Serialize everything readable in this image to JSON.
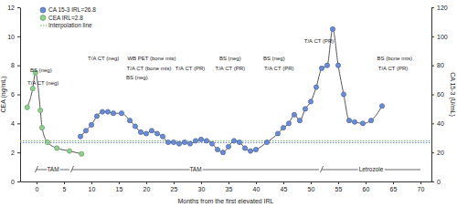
{
  "chart_data": {
    "type": "line",
    "x_label": "Months from the first elevated IRL",
    "y_label": "CEA (ng/mL)",
    "y2_label": "CA 15-3 (U/mL)",
    "xlim": [
      -3,
      72
    ],
    "xticks": [
      0,
      5,
      10,
      15,
      20,
      25,
      30,
      35,
      40,
      45,
      50,
      55,
      60,
      65,
      70
    ],
    "ylim": [
      0,
      12
    ],
    "yticks": [
      0,
      2,
      4,
      6,
      8,
      10,
      12
    ],
    "y2lim": [
      0,
      120
    ],
    "y2ticks": [
      0,
      20,
      40,
      60,
      80,
      100,
      120
    ],
    "legend": "top-left",
    "series": [
      {
        "name": "CA 15-3 IRL=26.8",
        "axis": "y2",
        "color": "#6a8bd6",
        "marker": "circle",
        "line_style": "solid",
        "irl": 26.8,
        "x": [
          8,
          9,
          10,
          11,
          12,
          13,
          14,
          15.5,
          17,
          18,
          19,
          20,
          21,
          22,
          23,
          24,
          25,
          26,
          27,
          28,
          29,
          30,
          31,
          32,
          33,
          34,
          35,
          36,
          37,
          38,
          39,
          40,
          42,
          44,
          45,
          46,
          47,
          48,
          49,
          50,
          51,
          52,
          53,
          54,
          55,
          56,
          57,
          58,
          59.5,
          61,
          63
        ],
        "values": [
          31,
          35,
          39,
          45,
          48,
          48,
          47,
          47,
          42,
          38,
          34,
          33,
          35,
          33,
          31,
          27,
          27,
          26,
          27,
          26,
          28,
          29,
          28,
          26,
          22,
          20,
          24,
          28,
          27,
          23,
          21,
          22,
          27,
          33,
          37,
          40,
          46,
          42,
          50,
          55,
          65,
          78,
          80,
          105,
          80,
          60,
          42,
          41,
          40,
          42,
          52
        ]
      },
      {
        "name": "CEA IRL=2.8",
        "color": "#8fd18f",
        "marker": "circle",
        "line_style": "solid",
        "irl": 2.8,
        "x": [
          -1.7,
          -0.7,
          -0.2,
          0.7,
          1,
          2,
          3.7,
          6,
          8.2
        ],
        "values": [
          5.1,
          6.4,
          7.5,
          4.9,
          3.7,
          2.7,
          2.3,
          2.1,
          1.9
        ]
      }
    ],
    "interpolation_line": {
      "label": "Interpolation line",
      "color": "#5aa05a",
      "line_style": "dotted"
    },
    "annotations": [
      {
        "text": "BS (neg)",
        "x": 0.8,
        "y": 7.7
      },
      {
        "text": "T/A CT (neg)",
        "x": 1.2,
        "y": 6.8
      },
      {
        "text": "T/A CT (neg)",
        "x": 12.2,
        "y": 8.5
      },
      {
        "text": "WB PET (bone mts)",
        "x": 21,
        "y": 8.5
      },
      {
        "text": "T/A CT (bone mts)",
        "x": 20.5,
        "y": 7.8
      },
      {
        "text": "BS (neg)",
        "x": 18.3,
        "y": 7.2
      },
      {
        "text": "T/A CT (PR)",
        "x": 28,
        "y": 7.8
      },
      {
        "text": "BS (neg)",
        "x": 35.3,
        "y": 8.5
      },
      {
        "text": "T/A CT (PR)",
        "x": 35.3,
        "y": 7.8
      },
      {
        "text": "BS (neg)",
        "x": 43.3,
        "y": 8.5
      },
      {
        "text": "T/A CT (PR)",
        "x": 44.2,
        "y": 7.8
      },
      {
        "text": "T/A CT (PR)",
        "x": 51.5,
        "y": 9.7
      },
      {
        "text": "BS (bone mts)",
        "x": 65.3,
        "y": 8.5
      },
      {
        "text": "T/A CT (PR)",
        "x": 65,
        "y": 7.8
      }
    ],
    "treatments": [
      {
        "label": "TAM",
        "start": 0,
        "end": 6
      },
      {
        "label": "TAM",
        "start": 6.5,
        "end": 51.5
      },
      {
        "label": "Letrozole",
        "start": 52,
        "end": 70
      }
    ]
  }
}
